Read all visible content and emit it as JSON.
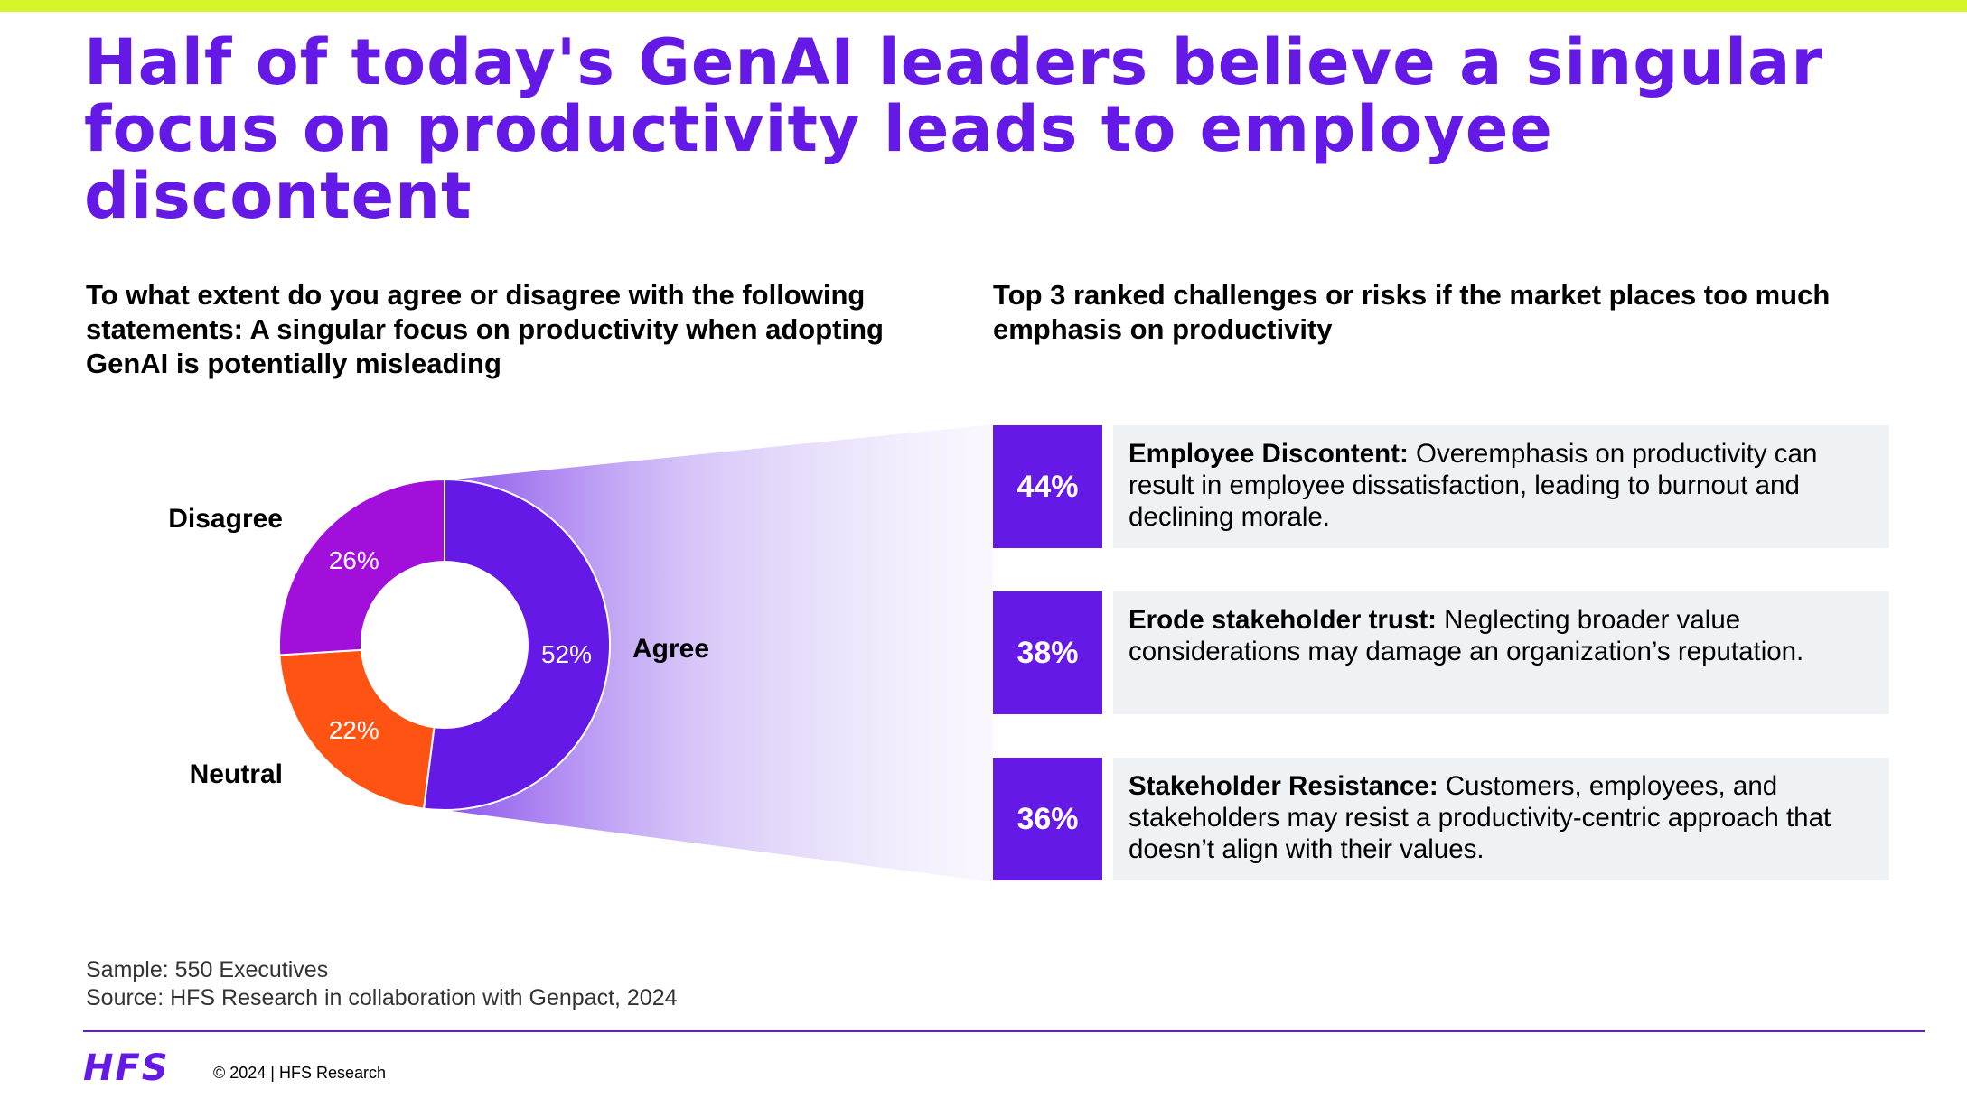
{
  "title": "Half of today's GenAI leaders believe a singular focus on productivity leads to employee discontent",
  "left_question": "To what extent do you agree or disagree with the following statements: A singular focus on productivity when adopting GenAI is potentially misleading",
  "right_question": "Top 3 ranked challenges or risks if the market places too much emphasis on productivity",
  "colors": {
    "accent": "#6419e6",
    "agree": "#6419e6",
    "neutral": "#ff5314",
    "disagree": "#a20fdb",
    "highlight_bar": "#d6f52a",
    "box_bg": "#eff2f5"
  },
  "chart_data": {
    "type": "pie",
    "donut": true,
    "categories": [
      "Agree",
      "Neutral",
      "Disagree"
    ],
    "values": [
      52,
      22,
      26
    ],
    "value_labels": [
      "52%",
      "22%",
      "26%"
    ],
    "title": "",
    "legend": "none"
  },
  "risks": [
    {
      "percent": "44%",
      "heading": "Employee Discontent:",
      "text": " Overemphasis on productivity can result in employee dissatisfaction, leading to burnout and declining morale."
    },
    {
      "percent": "38%",
      "heading": "Erode stakeholder trust:",
      "text": " Neglecting broader value considerations may damage an organization’s reputation."
    },
    {
      "percent": "36%",
      "heading": "Stakeholder Resistance:",
      "text": " Customers, employees, and stakeholders may resist a productivity-centric approach that doesn’t align with their values."
    }
  ],
  "footer": {
    "sample": "Sample: 550 Executives",
    "source": "Source: HFS Research in collaboration with Genpact, 2024",
    "logo": "HFS",
    "copyright": "© 2024 | HFS Research"
  }
}
